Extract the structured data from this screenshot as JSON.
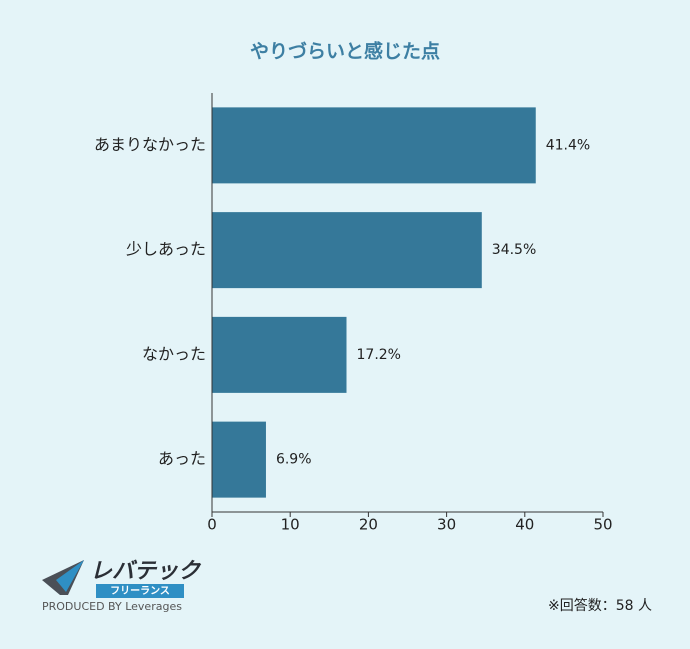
{
  "chart_data": {
    "type": "hbar",
    "title": "やりづらいと感じた点",
    "categories": [
      "あまりなかった",
      "少しあった",
      "なかった",
      "あった"
    ],
    "values": [
      41.4,
      34.5,
      17.2,
      6.9
    ],
    "value_labels": [
      "41.4%",
      "34.5%",
      "17.2%",
      "6.9%"
    ],
    "color": "#357899",
    "xlim": [
      0,
      50
    ],
    "xticks": [
      0,
      10,
      20,
      30,
      40,
      50
    ],
    "note": "※回答数：58 人"
  },
  "brand": {
    "name": "レバテック",
    "sub": "フリーランス",
    "credit": "PRODUCED BY Leverages"
  }
}
